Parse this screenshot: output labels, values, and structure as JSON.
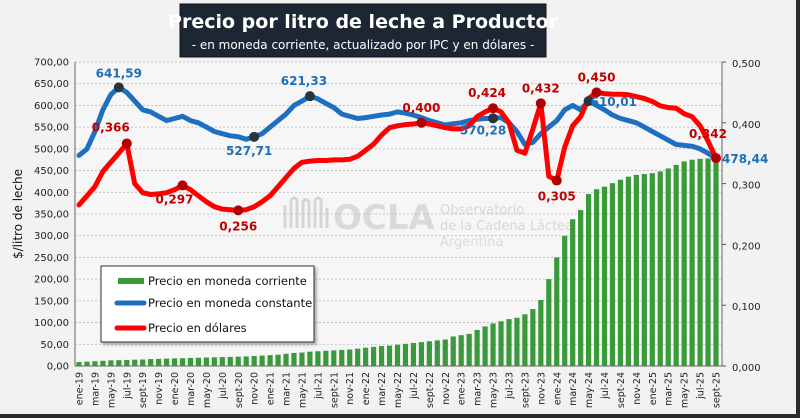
{
  "chart_data": {
    "type": "bar+line",
    "title": "Precio por litro de leche a Productor",
    "subtitle": "- en moneda corriente, actualizado por IPC y en dólares -",
    "ylabel": "$/litro de leche",
    "ylim_left": [
      0,
      700
    ],
    "yticks_left": [
      "0,00",
      "50,00",
      "100,00",
      "150,00",
      "200,00",
      "250,00",
      "300,00",
      "350,00",
      "400,00",
      "450,00",
      "500,00",
      "550,00",
      "600,00",
      "650,00",
      "700,00"
    ],
    "ylim_right": [
      0,
      0.5
    ],
    "yticks_right": [
      "0,000",
      "0,100",
      "0,200",
      "0,300",
      "0,400",
      "0,500"
    ],
    "grid": true,
    "legend_position": "bottom-left",
    "x_tick_labels": [
      "ene-19",
      "mar-19",
      "may-19",
      "jul-19",
      "sept-19",
      "nov-19",
      "ene-20",
      "mar-20",
      "may-20",
      "jul-20",
      "sept-20",
      "nov-20",
      "ene-21",
      "mar-21",
      "may-21",
      "jul-21",
      "sept-21",
      "nov-21",
      "ene-22",
      "mar-22",
      "may-22",
      "jul-22",
      "sept-22",
      "nov-22",
      "ene-23",
      "mar-23",
      "may-23",
      "jul-23",
      "sept-23",
      "nov-23",
      "ene-24",
      "mar-24",
      "may-24",
      "jul-24",
      "sept-24",
      "nov-24",
      "ene-25",
      "mar-25",
      "may-25",
      "jul-25",
      "sept-25"
    ],
    "x_range": [
      "ene-19",
      "sept-25"
    ],
    "series": [
      {
        "name": "Precio en moneda corriente",
        "type": "bar",
        "axis": "left",
        "color": "#3a9a3a",
        "values": [
          9,
          10,
          11,
          12,
          13,
          13.5,
          14,
          14.5,
          15,
          16,
          16.5,
          17,
          17.5,
          18,
          18.5,
          19,
          19.5,
          20,
          20.5,
          21,
          21.5,
          22,
          23,
          24,
          25,
          26,
          28,
          30,
          31,
          33,
          34,
          35,
          36,
          37,
          38,
          40,
          42,
          44,
          46,
          47,
          49,
          51,
          53,
          55,
          57,
          59,
          61,
          68,
          71,
          74,
          83,
          91,
          98,
          103,
          108,
          111,
          119,
          131,
          152,
          200,
          250,
          300,
          338,
          359,
          396,
          407,
          413,
          421,
          429,
          436,
          440,
          442,
          444,
          448,
          455,
          463,
          471,
          475,
          477,
          478,
          478.44
        ]
      },
      {
        "name": "Precio en moneda constante",
        "type": "line",
        "axis": "left",
        "color": "#1f6fc0",
        "values": [
          485,
          500,
          540,
          590,
          625,
          641.59,
          630,
          610,
          590,
          585,
          575,
          565,
          570,
          575,
          565,
          560,
          550,
          540,
          535,
          530,
          528,
          522,
          527.71,
          535,
          550,
          565,
          580,
          600,
          610,
          621.33,
          615,
          605,
          595,
          580,
          575,
          570,
          572,
          575,
          578,
          580,
          585,
          582,
          578,
          572,
          565,
          560,
          555,
          558,
          560,
          565,
          568,
          570,
          570.28,
          572,
          560,
          540,
          510,
          515,
          535,
          550,
          565,
          590,
          600,
          590,
          610.01,
          600,
          590,
          578,
          570,
          565,
          560,
          550,
          540,
          530,
          520,
          510,
          508,
          506,
          500,
          490,
          478.44
        ]
      },
      {
        "name": "Precio en dólares",
        "type": "line",
        "axis": "right",
        "color": "#ff0000",
        "values": [
          0.265,
          0.28,
          0.295,
          0.32,
          0.335,
          0.35,
          0.366,
          0.3,
          0.285,
          0.282,
          0.283,
          0.285,
          0.29,
          0.297,
          0.29,
          0.28,
          0.27,
          0.262,
          0.258,
          0.257,
          0.256,
          0.257,
          0.262,
          0.27,
          0.28,
          0.295,
          0.31,
          0.325,
          0.335,
          0.337,
          0.338,
          0.338,
          0.339,
          0.339,
          0.34,
          0.345,
          0.355,
          0.365,
          0.38,
          0.392,
          0.395,
          0.397,
          0.398,
          0.4,
          0.398,
          0.395,
          0.392,
          0.39,
          0.39,
          0.395,
          0.41,
          0.418,
          0.424,
          0.418,
          0.4,
          0.355,
          0.35,
          0.39,
          0.432,
          0.312,
          0.305,
          0.36,
          0.395,
          0.41,
          0.44,
          0.45,
          0.448,
          0.447,
          0.447,
          0.446,
          0.443,
          0.44,
          0.435,
          0.428,
          0.425,
          0.424,
          0.415,
          0.41,
          0.395,
          0.37,
          0.342
        ]
      }
    ],
    "annotations": [
      {
        "series": 1,
        "index": 5,
        "label": "641,59"
      },
      {
        "series": 1,
        "index": 22,
        "label": "527,71"
      },
      {
        "series": 1,
        "index": 29,
        "label": "621,33"
      },
      {
        "series": 1,
        "index": 52,
        "label": "570,28"
      },
      {
        "series": 1,
        "index": 64,
        "label": "610,01"
      },
      {
        "series": 1,
        "index": 80,
        "label": "478,44"
      },
      {
        "series": 2,
        "index": 6,
        "label": "0,366"
      },
      {
        "series": 2,
        "index": 13,
        "label": "0,297"
      },
      {
        "series": 2,
        "index": 20,
        "label": "0,256"
      },
      {
        "series": 2,
        "index": 43,
        "label": "0,400"
      },
      {
        "series": 2,
        "index": 52,
        "label": "0,424"
      },
      {
        "series": 2,
        "index": 58,
        "label": "0,432"
      },
      {
        "series": 2,
        "index": 60,
        "label": "0,305"
      },
      {
        "series": 2,
        "index": 65,
        "label": "0,450"
      },
      {
        "series": 2,
        "index": 80,
        "label": "0,342"
      }
    ]
  },
  "watermark": {
    "logo": "OCLA",
    "line1": "Observatorio",
    "line2": "de la Cadena Láctea",
    "line3": "Argentina"
  }
}
